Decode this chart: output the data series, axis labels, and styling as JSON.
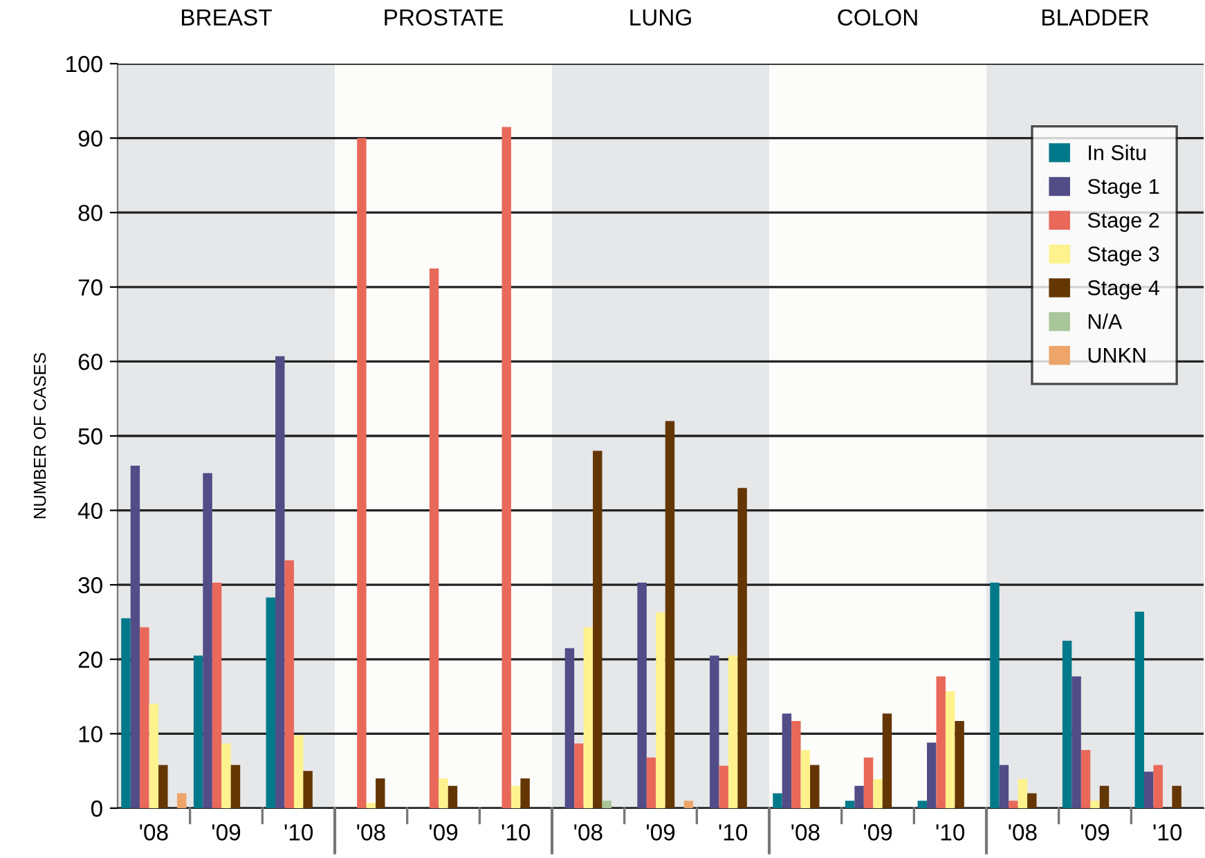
{
  "chart_data": {
    "type": "bar",
    "ylabel": "NUMBER OF CASES",
    "categories": [
      "'08",
      "'09",
      "'10",
      "'08",
      "'09",
      "'10",
      "'08",
      "'09",
      "'10",
      "'08",
      "'09",
      "'10",
      "'08",
      "'09",
      "'10"
    ],
    "series": [
      {
        "name": "In Situ",
        "color": "#007a8a",
        "values": [
          25.5,
          20.5,
          28.3,
          0,
          0,
          0,
          0,
          0,
          0,
          2,
          1,
          1,
          30.3,
          22.5,
          26.4
        ]
      },
      {
        "name": "Stage 1",
        "color": "#524c87",
        "values": [
          46,
          45,
          60.7,
          0,
          0,
          0,
          21.5,
          30.3,
          20.5,
          12.7,
          3,
          8.8,
          5.8,
          17.7,
          4.9
        ]
      },
      {
        "name": "Stage 2",
        "color": "#e8695a",
        "values": [
          24.3,
          30.3,
          33.3,
          90,
          72.5,
          91.5,
          8.7,
          6.8,
          5.7,
          11.7,
          6.8,
          17.7,
          1,
          7.8,
          5.8
        ]
      },
      {
        "name": "Stage 3",
        "color": "#fdf28e",
        "values": [
          14,
          8.7,
          9.8,
          0.7,
          4,
          3,
          24.3,
          26.3,
          20.5,
          7.8,
          3.9,
          15.7,
          3.9,
          1,
          0
        ]
      },
      {
        "name": "Stage 4",
        "color": "#643603",
        "values": [
          5.8,
          5.8,
          5,
          4,
          3,
          4,
          48,
          52,
          43,
          5.8,
          12.7,
          11.7,
          2,
          3,
          3
        ]
      },
      {
        "name": "N/A",
        "color": "#a8c69a",
        "values": [
          0,
          0,
          0,
          0,
          0,
          0,
          1,
          0,
          0,
          0,
          0,
          0,
          0,
          0,
          0
        ]
      },
      {
        "name": "UNKN",
        "color": "#eda56a",
        "values": [
          2,
          0,
          0,
          0,
          0,
          0,
          0,
          1,
          0,
          0,
          0,
          0,
          0,
          0,
          0
        ]
      }
    ],
    "annotations": [
      "BREAST",
      "PROSTATE",
      "LUNG",
      "COLON",
      "BLADDER"
    ],
    "ylim": [
      0,
      100
    ],
    "yticks": [
      0,
      10,
      20,
      30,
      40,
      50,
      60,
      70,
      80,
      90,
      100
    ],
    "grid": "y",
    "legend": "top right"
  }
}
